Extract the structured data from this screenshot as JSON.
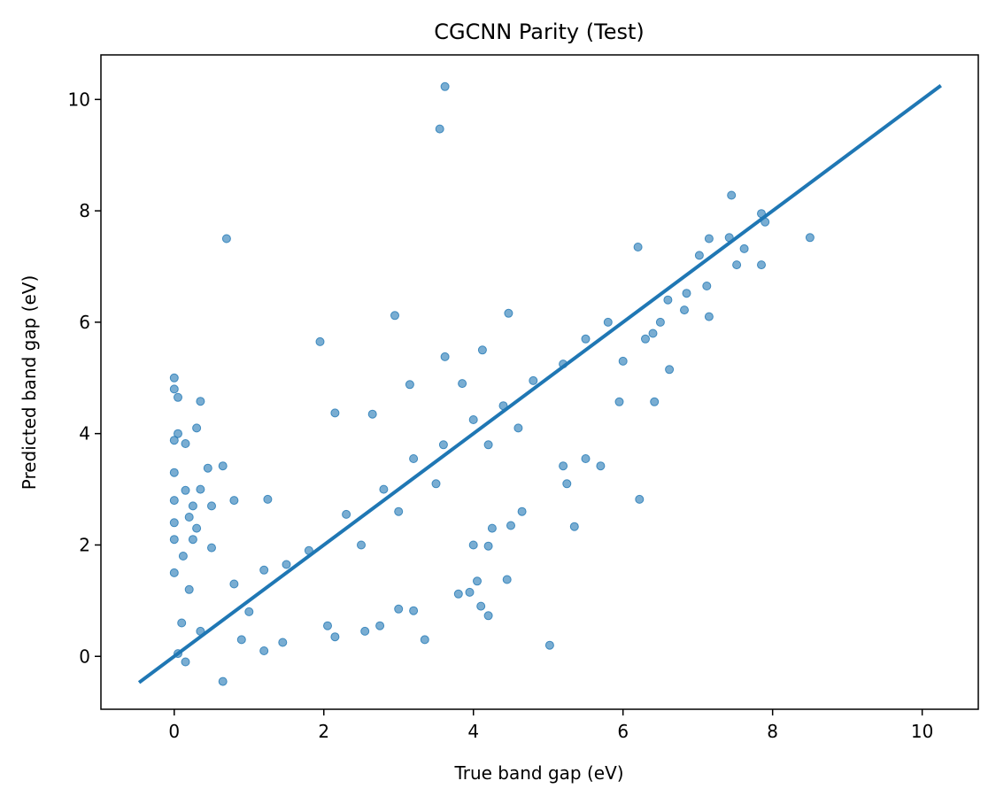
{
  "chart_data": {
    "type": "scatter",
    "title": "CGCNN Parity (Test)",
    "xlabel": "True band gap (eV)",
    "ylabel": "Predicted band gap (eV)",
    "xlim": [
      -0.98,
      10.75
    ],
    "ylim": [
      -0.95,
      10.8
    ],
    "xticks": [
      0,
      2,
      4,
      6,
      8,
      10
    ],
    "yticks": [
      0,
      2,
      4,
      6,
      8,
      10
    ],
    "grid": false,
    "legend": "none",
    "colors": {
      "points": "#1f77b4",
      "line": "#1f77b4",
      "axes": "#000000"
    },
    "reference_line": {
      "x": [
        -0.47,
        10.25
      ],
      "y": [
        -0.47,
        10.25
      ]
    },
    "series": [
      {
        "values": [
          [
            3.62,
            10.23
          ],
          [
            3.55,
            9.47
          ],
          [
            0.7,
            7.5
          ],
          [
            8.5,
            7.52
          ],
          [
            7.45,
            8.28
          ],
          [
            6.2,
            7.35
          ],
          [
            7.85,
            7.95
          ],
          [
            7.9,
            7.8
          ],
          [
            7.62,
            7.32
          ],
          [
            7.85,
            7.03
          ],
          [
            7.52,
            7.03
          ],
          [
            7.42,
            7.52
          ],
          [
            7.15,
            7.5
          ],
          [
            7.02,
            7.2
          ],
          [
            7.12,
            6.65
          ],
          [
            6.82,
            6.22
          ],
          [
            7.15,
            6.1
          ],
          [
            6.6,
            6.4
          ],
          [
            6.62,
            5.15
          ],
          [
            6.42,
            4.57
          ],
          [
            6.22,
            2.82
          ],
          [
            5.02,
            0.2
          ],
          [
            5.35,
            2.33
          ],
          [
            2.95,
            6.12
          ],
          [
            1.95,
            5.65
          ],
          [
            0.0,
            5.0
          ],
          [
            0.0,
            4.8
          ],
          [
            0.05,
            4.65
          ],
          [
            0.35,
            4.58
          ],
          [
            0.05,
            4.0
          ],
          [
            0.3,
            4.1
          ],
          [
            0.0,
            3.88
          ],
          [
            0.15,
            3.82
          ],
          [
            0.45,
            3.38
          ],
          [
            0.65,
            3.42
          ],
          [
            0.0,
            3.3
          ],
          [
            0.35,
            3.0
          ],
          [
            0.15,
            2.98
          ],
          [
            0.0,
            2.8
          ],
          [
            0.25,
            2.7
          ],
          [
            0.5,
            2.7
          ],
          [
            0.8,
            2.8
          ],
          [
            0.0,
            2.4
          ],
          [
            0.2,
            2.5
          ],
          [
            0.3,
            2.3
          ],
          [
            3.62,
            5.38
          ],
          [
            4.47,
            6.16
          ],
          [
            4.12,
            5.5
          ],
          [
            3.85,
            4.9
          ],
          [
            3.15,
            4.88
          ],
          [
            2.15,
            4.37
          ],
          [
            2.65,
            4.35
          ],
          [
            1.25,
            2.82
          ],
          [
            0.35,
            0.45
          ],
          [
            0.65,
            -0.45
          ],
          [
            4.1,
            0.9
          ],
          [
            4.05,
            1.35
          ],
          [
            4.45,
            1.38
          ],
          [
            4.2,
            0.73
          ],
          [
            3.95,
            1.15
          ],
          [
            3.8,
            1.12
          ],
          [
            3.2,
            0.82
          ],
          [
            3.0,
            0.85
          ],
          [
            3.35,
            0.3
          ],
          [
            2.55,
            0.45
          ],
          [
            4.2,
            1.98
          ],
          [
            4.0,
            2.0
          ],
          [
            4.65,
            2.6
          ],
          [
            4.5,
            2.35
          ],
          [
            4.25,
            2.3
          ],
          [
            5.2,
            3.42
          ],
          [
            5.25,
            3.1
          ],
          [
            5.7,
            3.42
          ],
          [
            5.5,
            3.55
          ],
          [
            5.95,
            4.57
          ],
          [
            6.3,
            5.7
          ],
          [
            6.0,
            5.3
          ],
          [
            6.4,
            5.8
          ],
          [
            6.5,
            6.0
          ],
          [
            6.85,
            6.52
          ],
          [
            2.15,
            0.35
          ],
          [
            2.05,
            0.55
          ],
          [
            1.45,
            0.25
          ],
          [
            1.2,
            0.1
          ],
          [
            2.75,
            0.55
          ],
          [
            0.9,
            0.3
          ],
          [
            0.15,
            -0.1
          ],
          [
            0.05,
            0.05
          ],
          [
            0.1,
            0.6
          ],
          [
            0.2,
            1.2
          ],
          [
            0.0,
            1.5
          ],
          [
            0.12,
            1.8
          ],
          [
            0.5,
            1.95
          ],
          [
            0.0,
            2.1
          ],
          [
            0.25,
            2.1
          ],
          [
            1.5,
            1.65
          ],
          [
            1.8,
            1.9
          ],
          [
            2.3,
            2.55
          ],
          [
            2.8,
            3.0
          ],
          [
            3.2,
            3.55
          ],
          [
            3.6,
            3.8
          ],
          [
            4.0,
            4.25
          ],
          [
            4.4,
            4.5
          ],
          [
            4.8,
            4.95
          ],
          [
            5.2,
            5.25
          ],
          [
            5.5,
            5.7
          ],
          [
            5.8,
            6.0
          ],
          [
            1.0,
            0.8
          ],
          [
            0.8,
            1.3
          ],
          [
            1.2,
            1.55
          ],
          [
            2.5,
            2.0
          ],
          [
            3.0,
            2.6
          ],
          [
            3.5,
            3.1
          ],
          [
            4.2,
            3.8
          ],
          [
            4.6,
            4.1
          ]
        ]
      }
    ]
  }
}
